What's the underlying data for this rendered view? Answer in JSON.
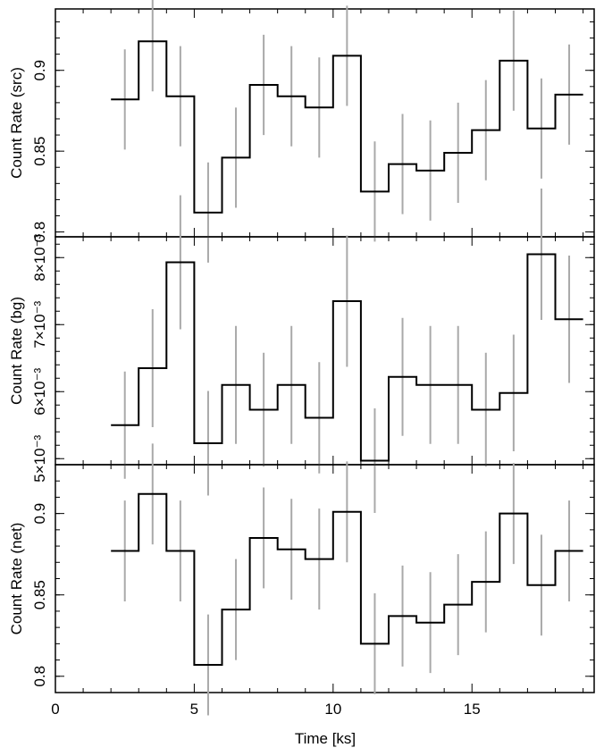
{
  "chart_data": [
    {
      "type": "line",
      "ylabel": "Count Rate (src)",
      "xlim": [
        0,
        19.4
      ],
      "ylim": [
        0.797,
        0.938
      ],
      "x_step_edges": [
        2,
        3,
        4,
        5,
        6,
        7,
        8,
        9,
        10,
        11,
        12,
        13,
        14,
        15,
        16,
        17,
        18,
        19
      ],
      "x_centers": [
        2.5,
        3.5,
        4.5,
        5.5,
        6.5,
        7.5,
        8.5,
        9.5,
        10.5,
        11.5,
        12.5,
        13.5,
        14.5,
        15.5,
        16.5,
        17.5,
        18.5
      ],
      "y": [
        0.882,
        0.918,
        0.884,
        0.812,
        0.846,
        0.891,
        0.884,
        0.877,
        0.909,
        0.825,
        0.842,
        0.838,
        0.849,
        0.863,
        0.906,
        0.864,
        0.885
      ],
      "y_err": [
        0.031,
        0.031,
        0.031,
        0.031,
        0.031,
        0.031,
        0.031,
        0.031,
        0.031,
        0.031,
        0.031,
        0.031,
        0.031,
        0.031,
        0.031,
        0.031,
        0.031
      ],
      "yticks_major": [
        {
          "value": 0.8,
          "label": "0.8"
        },
        {
          "value": 0.85,
          "label": "0.85"
        },
        {
          "value": 0.9,
          "label": "0.9"
        }
      ],
      "minor_step": 0.01,
      "colors": {
        "line": "#000000",
        "errorbar": "#a9a9a9"
      }
    },
    {
      "type": "line",
      "ylabel": "Count Rate (bg)",
      "xlim": [
        0,
        19.4
      ],
      "ylim": [
        0.00491,
        0.00831
      ],
      "x_step_edges": [
        2,
        3,
        4,
        5,
        6,
        7,
        8,
        9,
        10,
        11,
        12,
        13,
        14,
        15,
        16,
        17,
        18,
        19
      ],
      "x_centers": [
        2.5,
        3.5,
        4.5,
        5.5,
        6.5,
        7.5,
        8.5,
        9.5,
        10.5,
        11.5,
        12.5,
        13.5,
        14.5,
        15.5,
        16.5,
        17.5,
        18.5
      ],
      "y": [
        0.0055,
        0.00635,
        0.00793,
        0.00523,
        0.0061,
        0.00573,
        0.0061,
        0.00561,
        0.00735,
        0.00497,
        0.00622,
        0.0061,
        0.0061,
        0.00573,
        0.00598,
        0.00805,
        0.00708
      ],
      "y_err": [
        0.0008,
        0.00088,
        0.001,
        0.00078,
        0.00088,
        0.00085,
        0.00088,
        0.00083,
        0.00098,
        0.00078,
        0.00088,
        0.00088,
        0.00088,
        0.00085,
        0.00087,
        0.00098,
        0.00095
      ],
      "yticks_major": [
        {
          "value": 0.005,
          "label": "5×10⁻³"
        },
        {
          "value": 0.006,
          "label": "6×10⁻³"
        },
        {
          "value": 0.007,
          "label": "7×10⁻³"
        },
        {
          "value": 0.008,
          "label": "8×10⁻³"
        }
      ],
      "minor_step": 0.0002,
      "colors": {
        "line": "#000000",
        "errorbar": "#a9a9a9"
      }
    },
    {
      "type": "line",
      "ylabel": "Count Rate (net)",
      "xlabel": "Time [ks]",
      "xlim": [
        0,
        19.4
      ],
      "ylim": [
        0.79,
        0.93
      ],
      "x_step_edges": [
        2,
        3,
        4,
        5,
        6,
        7,
        8,
        9,
        10,
        11,
        12,
        13,
        14,
        15,
        16,
        17,
        18,
        19
      ],
      "x_centers": [
        2.5,
        3.5,
        4.5,
        5.5,
        6.5,
        7.5,
        8.5,
        9.5,
        10.5,
        11.5,
        12.5,
        13.5,
        14.5,
        15.5,
        16.5,
        17.5,
        18.5
      ],
      "y": [
        0.877,
        0.912,
        0.877,
        0.807,
        0.841,
        0.885,
        0.878,
        0.872,
        0.901,
        0.82,
        0.837,
        0.833,
        0.844,
        0.858,
        0.9,
        0.856,
        0.877
      ],
      "y_err": [
        0.031,
        0.031,
        0.031,
        0.031,
        0.031,
        0.031,
        0.031,
        0.031,
        0.031,
        0.031,
        0.031,
        0.031,
        0.031,
        0.031,
        0.031,
        0.031,
        0.031
      ],
      "yticks_major": [
        {
          "value": 0.8,
          "label": "0.8"
        },
        {
          "value": 0.85,
          "label": "0.85"
        },
        {
          "value": 0.9,
          "label": "0.9"
        }
      ],
      "minor_step": 0.01,
      "xticks_major": [
        {
          "value": 0,
          "label": "0"
        },
        {
          "value": 5,
          "label": "5"
        },
        {
          "value": 10,
          "label": "10"
        },
        {
          "value": 15,
          "label": "15"
        }
      ],
      "x_minor_step": 1,
      "colors": {
        "line": "#000000",
        "errorbar": "#a9a9a9"
      }
    }
  ]
}
